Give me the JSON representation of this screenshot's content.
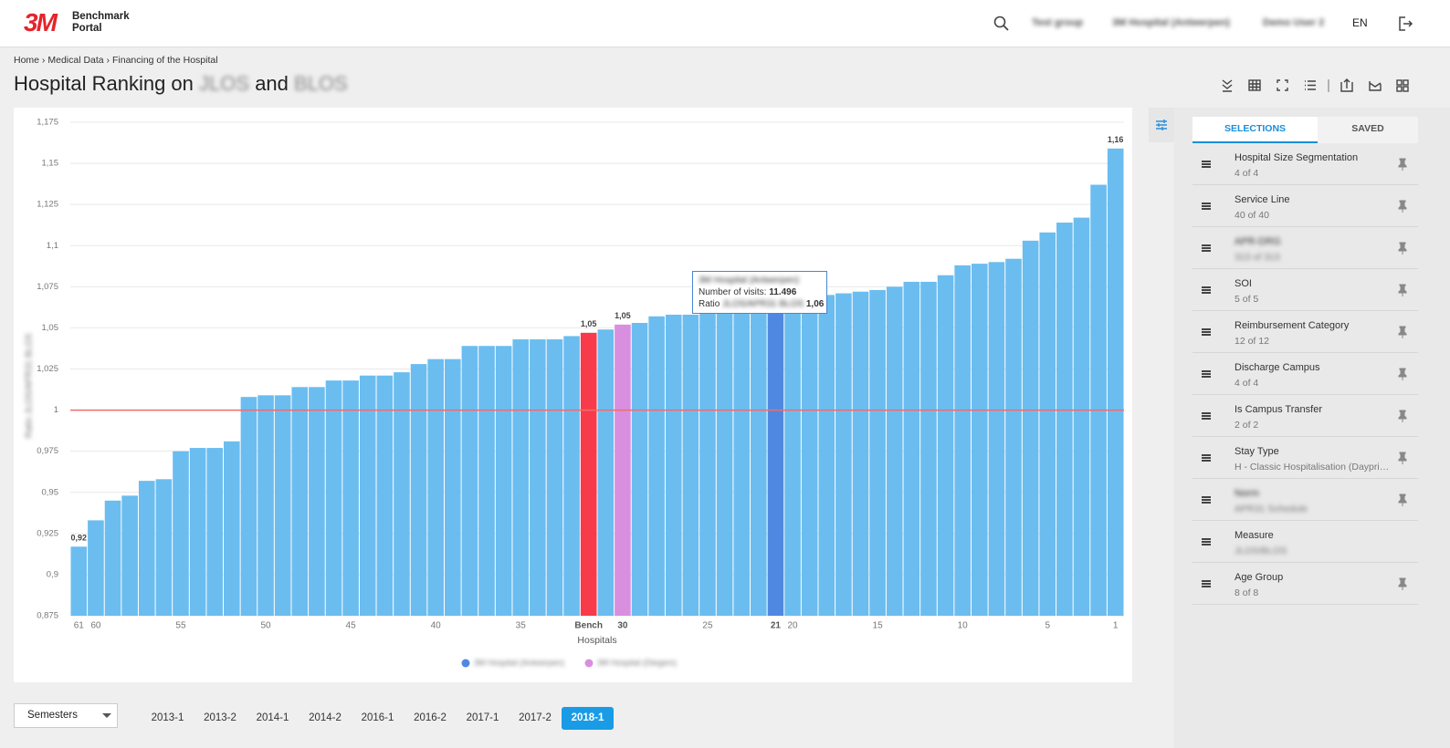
{
  "header": {
    "logo": "3M",
    "brand": [
      "Benchmark",
      "Portal"
    ],
    "nav": [
      "Test group",
      "3M Hospital (Antwerpen)",
      "Demo User 2"
    ],
    "language": "EN"
  },
  "breadcrumb": [
    "Home",
    "Medical Data",
    "Financing of the Hospital"
  ],
  "page_title": {
    "text": "Hospital Ranking on",
    "measure1": "JLOS",
    "conjunction": "and",
    "measure2": "BLOS"
  },
  "chart_data": {
    "type": "bar",
    "ylabel": "Ratio JLOS/APR31 BLOS",
    "xlabel": "Hospitals",
    "categories": [
      "61",
      "60",
      null,
      null,
      null,
      null,
      "55",
      null,
      null,
      null,
      null,
      "50",
      null,
      null,
      null,
      null,
      "45",
      null,
      null,
      null,
      null,
      "40",
      null,
      null,
      null,
      null,
      "35",
      null,
      null,
      null,
      "Bench",
      null,
      "30",
      null,
      null,
      null,
      null,
      "25",
      null,
      null,
      null,
      "21",
      "20",
      null,
      null,
      null,
      null,
      "15",
      null,
      null,
      null,
      null,
      "10",
      null,
      null,
      null,
      null,
      "5",
      null,
      null,
      null,
      "1"
    ],
    "values": [
      0.917,
      0.933,
      0.945,
      0.948,
      0.957,
      0.958,
      0.975,
      0.977,
      0.977,
      0.981,
      1.008,
      1.009,
      1.009,
      1.014,
      1.014,
      1.018,
      1.018,
      1.021,
      1.021,
      1.023,
      1.028,
      1.031,
      1.031,
      1.039,
      1.039,
      1.039,
      1.043,
      1.043,
      1.043,
      1.045,
      1.047,
      1.049,
      1.052,
      1.053,
      1.057,
      1.058,
      1.058,
      1.059,
      1.059,
      1.06,
      1.06,
      1.06,
      1.062,
      1.065,
      1.07,
      1.071,
      1.072,
      1.073,
      1.075,
      1.078,
      1.078,
      1.082,
      1.088,
      1.089,
      1.09,
      1.092,
      1.103,
      1.108,
      1.114,
      1.117,
      1.137,
      1.159
    ],
    "value_labels": [
      "0,92",
      null,
      null,
      null,
      null,
      null,
      null,
      null,
      null,
      null,
      null,
      null,
      null,
      null,
      null,
      null,
      null,
      null,
      null,
      null,
      null,
      null,
      null,
      null,
      null,
      null,
      null,
      null,
      null,
      null,
      "1,05",
      null,
      "1,05",
      null,
      null,
      null,
      null,
      null,
      null,
      null,
      null,
      null,
      null,
      null,
      null,
      null,
      null,
      null,
      null,
      null,
      null,
      null,
      null,
      null,
      null,
      null,
      null,
      null,
      null,
      null,
      null,
      "1,16"
    ],
    "color": "#6bbdf0",
    "colors": [
      "#6bbdf0",
      "#6bbdf0",
      "#6bbdf0",
      "#6bbdf0",
      "#6bbdf0",
      "#6bbdf0",
      "#6bbdf0",
      "#6bbdf0",
      "#6bbdf0",
      "#6bbdf0",
      "#6bbdf0",
      "#6bbdf0",
      "#6bbdf0",
      "#6bbdf0",
      "#6bbdf0",
      "#6bbdf0",
      "#6bbdf0",
      "#6bbdf0",
      "#6bbdf0",
      "#6bbdf0",
      "#6bbdf0",
      "#6bbdf0",
      "#6bbdf0",
      "#6bbdf0",
      "#6bbdf0",
      "#6bbdf0",
      "#6bbdf0",
      "#6bbdf0",
      "#6bbdf0",
      "#6bbdf0",
      "#f73b4a",
      "#6bbdf0",
      "#d98fdf",
      "#6bbdf0",
      "#6bbdf0",
      "#6bbdf0",
      "#6bbdf0",
      "#6bbdf0",
      "#6bbdf0",
      "#6bbdf0",
      "#6bbdf0",
      "#4f88e0",
      "#6bbdf0",
      "#6bbdf0",
      "#6bbdf0",
      "#6bbdf0",
      "#6bbdf0",
      "#6bbdf0",
      "#6bbdf0",
      "#6bbdf0",
      "#6bbdf0",
      "#6bbdf0",
      "#6bbdf0",
      "#6bbdf0",
      "#6bbdf0",
      "#6bbdf0",
      "#6bbdf0",
      "#6bbdf0",
      "#6bbdf0",
      "#6bbdf0",
      "#6bbdf0",
      "#6bbdf0"
    ],
    "ylim": [
      0.875,
      1.175
    ],
    "yticks": [
      {
        "value": 0.875,
        "label": "0,875"
      },
      {
        "value": 0.9,
        "label": "0,9"
      },
      {
        "value": 0.925,
        "label": "0,925"
      },
      {
        "value": 0.95,
        "label": "0,95"
      },
      {
        "value": 0.975,
        "label": "0,975"
      },
      1,
      {
        "value": 1.025,
        "label": "1,025"
      },
      {
        "value": 1.05,
        "label": "1,05"
      },
      {
        "value": 1.075,
        "label": "1,075"
      },
      {
        "value": 1.1,
        "label": "1,1"
      },
      {
        "value": 1.125,
        "label": "1,125"
      },
      {
        "value": 1.15,
        "label": "1,15"
      },
      {
        "value": 1.175,
        "label": "1,175"
      }
    ],
    "grid": true,
    "reference_line": {
      "value": 1,
      "color": "#f26b6b"
    },
    "legend": [
      {
        "name": "3M Hospital (Antwerpen)",
        "color": "#4f88e0"
      },
      {
        "name": "3M Hospital (Diegem)",
        "color": "#d98fdf"
      }
    ],
    "tooltip": {
      "title": "3M Hospital (Antwerpen)",
      "visits_label": "Number of visits:",
      "visits": "11.496",
      "ratio_label": "Ratio",
      "ratio_measure": "JLOS/APR31 BLOS",
      "ratio": "1,06"
    }
  },
  "panel": {
    "tabs": [
      "SELECTIONS",
      "SAVED"
    ],
    "items": [
      {
        "name": "Hospital Size Segmentation",
        "value": "4 of 4",
        "pinned": true,
        "blurred": false
      },
      {
        "name": "Service Line",
        "value": "40 of 40",
        "pinned": true,
        "blurred": false
      },
      {
        "name": "APR-DRG",
        "value": "313 of 313",
        "pinned": true,
        "blurred": true
      },
      {
        "name": "SOI",
        "value": "5 of 5",
        "pinned": true,
        "blurred": false
      },
      {
        "name": "Reimbursement Category",
        "value": "12 of 12",
        "pinned": true,
        "blurred": false
      },
      {
        "name": "Discharge Campus",
        "value": "4 of 4",
        "pinned": true,
        "blurred": false
      },
      {
        "name": "Is Campus Transfer",
        "value": "2 of 2",
        "pinned": true,
        "blurred": false
      },
      {
        "name": "Stay Type",
        "value": "H - Classic Hospitalisation (Daypri…",
        "pinned": true,
        "blurred": false
      },
      {
        "name": "Norm",
        "value": "APR31 Schedule",
        "pinned": true,
        "blurred": true
      },
      {
        "name": "Measure",
        "value": "JLOS/BLOS",
        "pinned": false,
        "blurred": "value"
      },
      {
        "name": "Age Group",
        "value": "8 of 8",
        "pinned": true,
        "blurred": false
      }
    ]
  },
  "period_selector": {
    "granularity": "Semesters",
    "periods": [
      "2013-1",
      "2013-2",
      "2014-1",
      "2014-2",
      "2016-1",
      "2016-2",
      "2017-1",
      "2017-2",
      "2018-1"
    ],
    "active": 8
  }
}
